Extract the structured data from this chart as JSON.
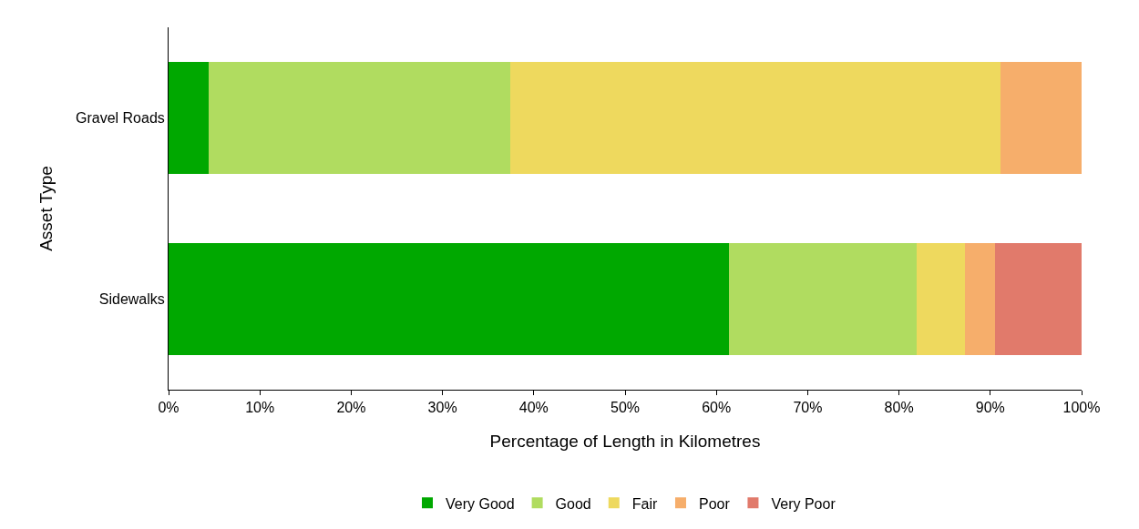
{
  "chart_data": {
    "type": "bar",
    "orientation": "horizontal",
    "stacked": true,
    "categories": [
      "Gravel Roads",
      "Sidewalks"
    ],
    "xlabel": "Percentage of Length in Kilometres",
    "ylabel": "Asset Type",
    "xlim": [
      0,
      100
    ],
    "xticks": [
      {
        "value": 0,
        "label": "0%"
      },
      {
        "value": 10,
        "label": "10%"
      },
      {
        "value": 20,
        "label": "20%"
      },
      {
        "value": 30,
        "label": "30%"
      },
      {
        "value": 40,
        "label": "40%"
      },
      {
        "value": 50,
        "label": "50%"
      },
      {
        "value": 60,
        "label": "60%"
      },
      {
        "value": 70,
        "label": "70%"
      },
      {
        "value": 80,
        "label": "80%"
      },
      {
        "value": 90,
        "label": "90%"
      },
      {
        "value": 100,
        "label": "100%"
      }
    ],
    "grid": false,
    "legend": "bottom",
    "series": [
      {
        "name": "Very Good",
        "color": "#00a800",
        "values": [
          4.4,
          61.4
        ]
      },
      {
        "name": "Good",
        "color": "#b0dc60",
        "values": [
          33.0,
          20.5
        ]
      },
      {
        "name": "Fair",
        "color": "#eed95e",
        "values": [
          53.7,
          5.3
        ]
      },
      {
        "name": "Poor",
        "color": "#f6ae6b",
        "values": [
          8.9,
          3.3
        ]
      },
      {
        "name": "Very Poor",
        "color": "#e17a6b",
        "values": [
          0,
          9.5
        ]
      }
    ]
  }
}
